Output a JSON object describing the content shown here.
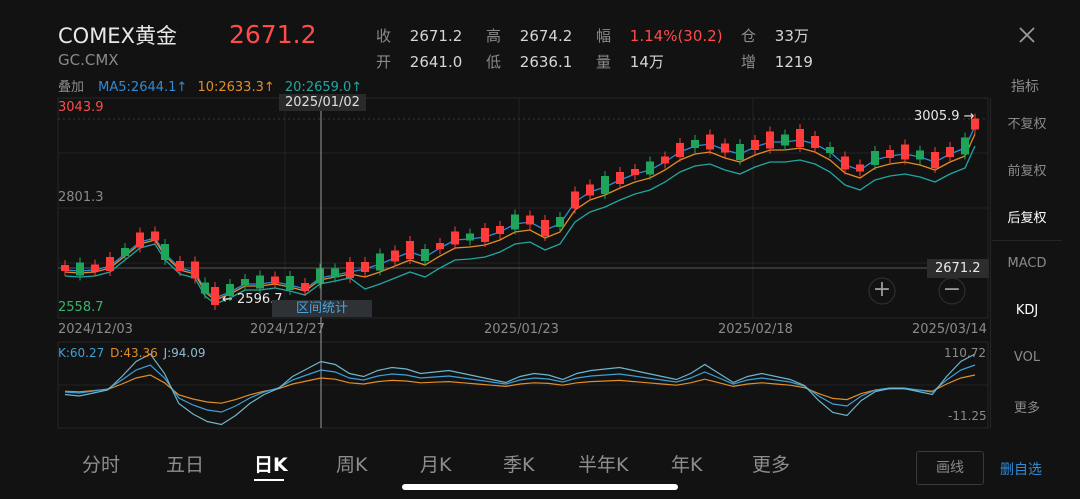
{
  "header": {
    "title": "COMEX黄金",
    "symbol": "GC.CMX",
    "price": "2671.2",
    "stats": [
      {
        "label": "收",
        "value": "2671.2"
      },
      {
        "label": "高",
        "value": "2674.2"
      },
      {
        "label": "幅",
        "value": "1.14%(30.2)",
        "color": "#ff4b4b"
      },
      {
        "label": "仓",
        "value": "33万"
      },
      {
        "label": "开",
        "value": "2641.0"
      },
      {
        "label": "低",
        "value": "2636.1"
      },
      {
        "label": "量",
        "value": "14万"
      },
      {
        "label": "增",
        "value": "1219"
      }
    ]
  },
  "indicators": {
    "overlay_label": "叠加",
    "ma5": "MA5:2644.1↑",
    "ma10": "10:2633.3↑",
    "ma20": "20:2659.0↑",
    "colors": {
      "ma5": "#2f8bd6",
      "ma10": "#e28d27",
      "ma20": "#22a6a0"
    }
  },
  "side_panel": {
    "label": "指标",
    "items": [
      {
        "label": "不复权",
        "active": false
      },
      {
        "label": "前复权",
        "active": false
      },
      {
        "label": "后复权",
        "active": true
      },
      {
        "label": "MACD",
        "active": false
      },
      {
        "label": "KDJ",
        "active": true
      },
      {
        "label": "VOL",
        "active": false
      },
      {
        "label": "更多",
        "active": false
      }
    ]
  },
  "chart": {
    "crosshair_date": "2025/01/02",
    "y_top": "3043.9",
    "y_mid": "2801.3",
    "y_bottom": "2558.7",
    "max_label": "3005.9",
    "min_label": "2596.7",
    "current_label": "2671.2",
    "interval_stats": "区间统计",
    "x_dates": [
      "2024/12/03",
      "2024/12/27",
      "2025/01/23",
      "2025/02/18",
      "2025/03/14"
    ],
    "zoom_in": "+",
    "zoom_out": "−"
  },
  "kdj": {
    "k": "K:60.27",
    "d": "D:43.36",
    "j": "J:94.09",
    "y_top": "110.72",
    "y_bottom": "-11.25",
    "colors": {
      "k": "#3ea0d8",
      "d": "#e28d27",
      "j": "#6fb5c9"
    }
  },
  "tabs": [
    {
      "label": "分时",
      "active": false
    },
    {
      "label": "五日",
      "active": false
    },
    {
      "label": "日K",
      "active": true
    },
    {
      "label": "周K",
      "active": false
    },
    {
      "label": "月K",
      "active": false
    },
    {
      "label": "季K",
      "active": false
    },
    {
      "label": "半年K",
      "active": false
    },
    {
      "label": "年K",
      "active": false
    },
    {
      "label": "更多",
      "active": false
    }
  ],
  "footer": {
    "draw_line": "画线",
    "remove_watchlist": "删自选"
  },
  "colors": {
    "up": "#ff3b3b",
    "down": "#1fa45c",
    "accent": "#2f8bd6"
  }
}
